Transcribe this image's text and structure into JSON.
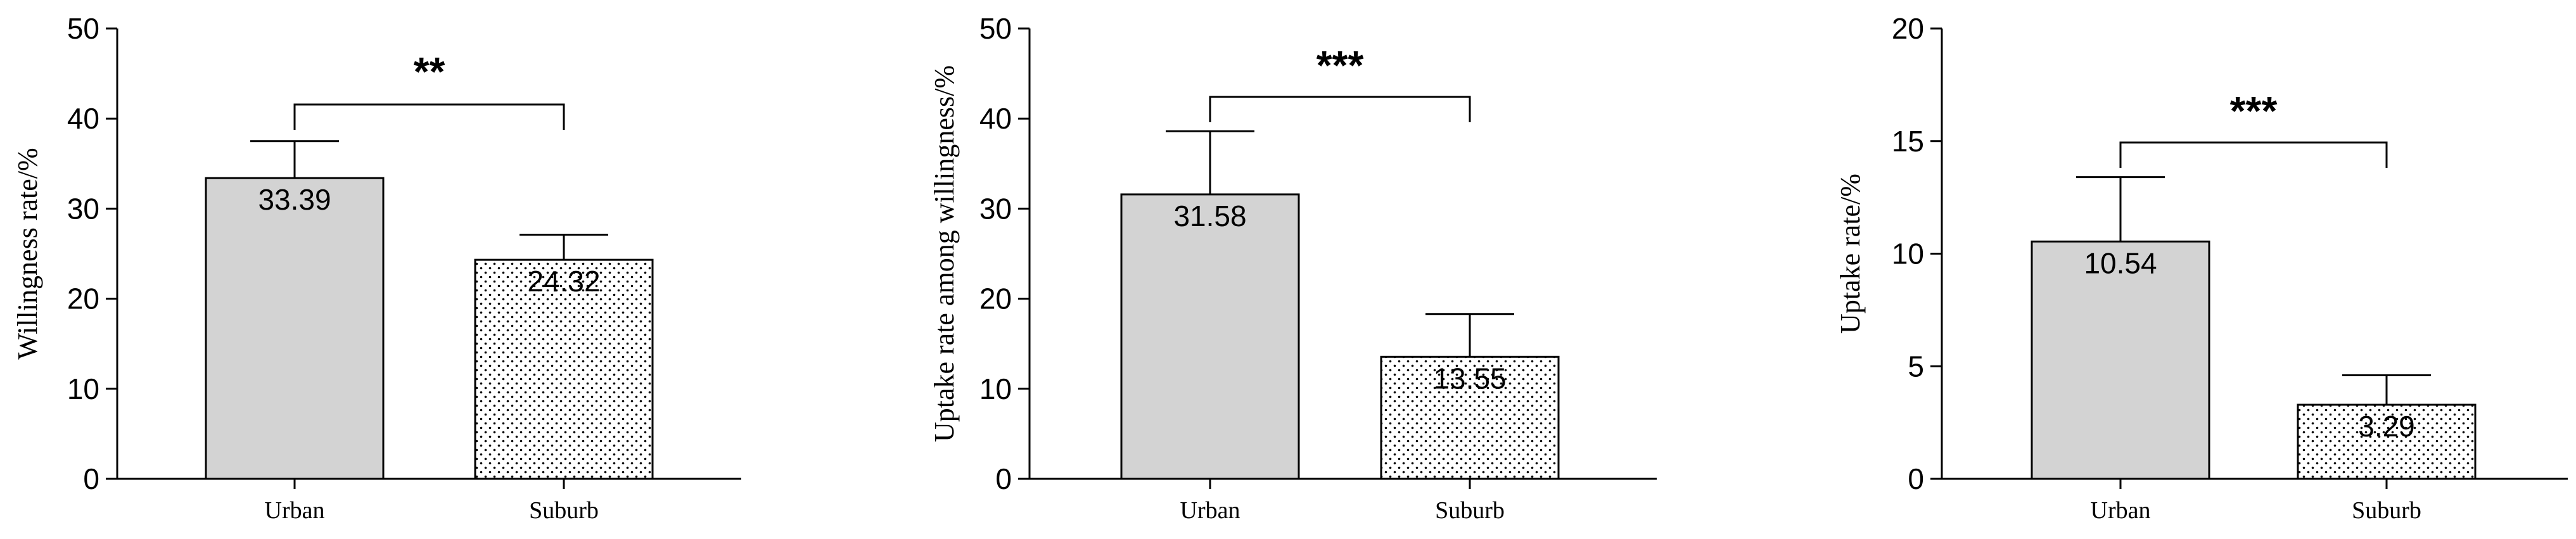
{
  "chart_data": [
    {
      "type": "bar",
      "categories": [
        "Urban",
        "Suburb"
      ],
      "values": [
        33.39,
        24.32
      ],
      "value_labels": [
        "33.39",
        "24.32"
      ],
      "error_upper": [
        37.5,
        27.1
      ],
      "ylabel": "Willingness rate/%",
      "ylim": [
        0,
        50
      ],
      "yticks": [
        0,
        10,
        20,
        30,
        40,
        50
      ],
      "ytick_labels": [
        "0",
        "10",
        "20",
        "30",
        "40",
        "50"
      ],
      "significance": "**",
      "bar_fills": [
        "#d3d3d3",
        "dotted"
      ],
      "grid": false
    },
    {
      "type": "bar",
      "categories": [
        "Urban",
        "Suburb"
      ],
      "values": [
        31.58,
        13.55
      ],
      "value_labels": [
        "31.58",
        "13.55"
      ],
      "error_upper": [
        38.6,
        18.3
      ],
      "ylabel": "Uptake rate among willingness/%",
      "ylim": [
        0,
        50
      ],
      "yticks": [
        0,
        10,
        20,
        30,
        40,
        50
      ],
      "ytick_labels": [
        "0",
        "10",
        "20",
        "30",
        "40",
        "50"
      ],
      "significance": "***",
      "bar_fills": [
        "#d3d3d3",
        "dotted"
      ],
      "grid": false
    },
    {
      "type": "bar",
      "categories": [
        "Urban",
        "Suburb"
      ],
      "values": [
        10.54,
        3.29
      ],
      "value_labels": [
        "10.54",
        "3.29"
      ],
      "error_upper": [
        13.4,
        4.6
      ],
      "ylabel": "Uptake rate/%",
      "ylim": [
        0,
        20
      ],
      "yticks": [
        0,
        5,
        10,
        15,
        20
      ],
      "ytick_labels": [
        "0",
        "5",
        "10",
        "15",
        "20"
      ],
      "significance": "***",
      "bar_fills": [
        "#d3d3d3",
        "dotted"
      ],
      "grid": false
    }
  ]
}
